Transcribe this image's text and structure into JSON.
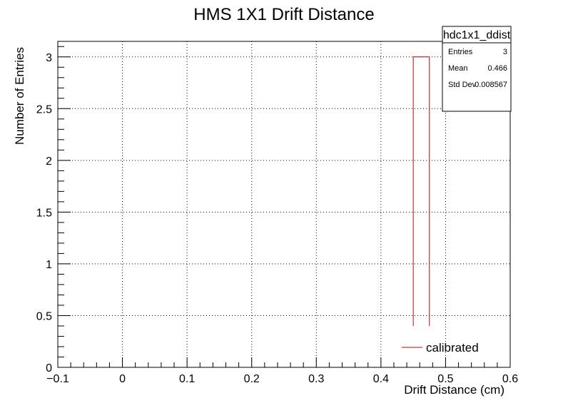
{
  "chart_data": {
    "type": "bar",
    "title": "HMS 1X1 Drift Distance",
    "xlabel": "Drift Distance (cm)",
    "ylabel": "Number of Entries",
    "xlim": [
      -0.1,
      0.6
    ],
    "ylim": [
      0,
      3.15
    ],
    "x_ticks": [
      -0.1,
      0,
      0.1,
      0.2,
      0.3,
      0.4,
      0.5,
      0.6
    ],
    "x_tick_labels": [
      "−0.1",
      "0",
      "0.1",
      "0.2",
      "0.3",
      "0.4",
      "0.5",
      "0.6"
    ],
    "y_ticks": [
      0,
      0.5,
      1,
      1.5,
      2,
      2.5,
      3
    ],
    "y_tick_labels": [
      "0",
      "0.5",
      "1",
      "1.5",
      "2",
      "2.5",
      "3"
    ],
    "grid": true,
    "series": [
      {
        "name": "calibrated",
        "color": "#cc0000",
        "bins": [
          {
            "x_low": 0.45,
            "x_high": 0.475,
            "value": 3
          }
        ]
      }
    ],
    "stats_box": {
      "name": "hdc1x1_ddist",
      "rows": [
        {
          "label": "Entries",
          "value": "3"
        },
        {
          "label": "Mean",
          "value": "0.466"
        },
        {
          "label": "Std Dev",
          "value": "0.008567"
        }
      ]
    },
    "legend": {
      "position": "bottom-right",
      "entries": [
        "calibrated"
      ]
    }
  }
}
